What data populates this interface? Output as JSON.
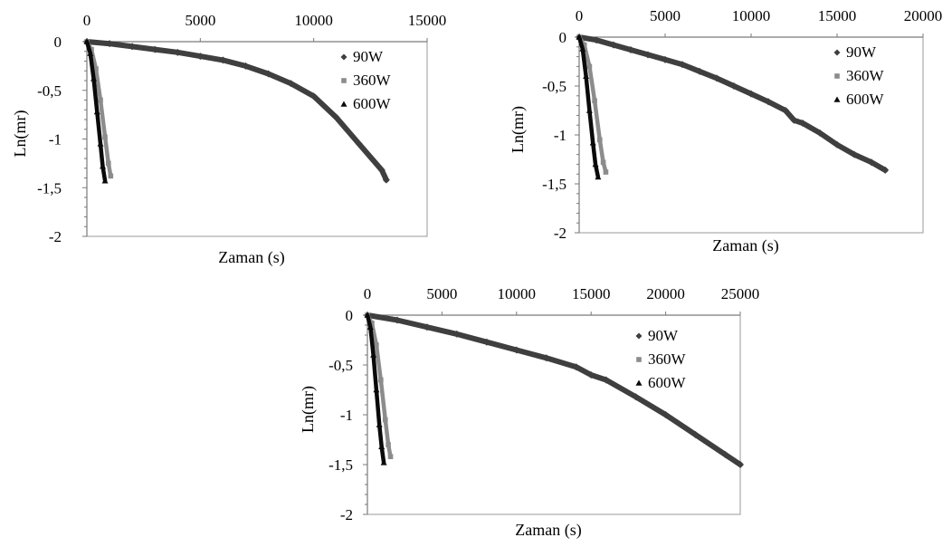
{
  "chart_data": [
    {
      "type": "scatter",
      "xlabel": "Zaman (s)",
      "ylabel": "Ln(mr)",
      "x_ticks": [
        "0",
        "5000",
        "10000",
        "15000"
      ],
      "y_ticks": [
        "0",
        "-0,5",
        "-1",
        "-1,5",
        "-2"
      ],
      "xlim": [
        0,
        15000
      ],
      "ylim": [
        -2,
        0
      ],
      "x_axis_position": "top",
      "grid": false,
      "legend_position": "top-right",
      "series": [
        {
          "name": "90W",
          "marker": "diamond",
          "color": "#3f3f3f",
          "points": [
            [
              0,
              0
            ],
            [
              1000,
              -0.02
            ],
            [
              2000,
              -0.05
            ],
            [
              3000,
              -0.08
            ],
            [
              4000,
              -0.11
            ],
            [
              5000,
              -0.15
            ],
            [
              6000,
              -0.19
            ],
            [
              7000,
              -0.25
            ],
            [
              8000,
              -0.33
            ],
            [
              9000,
              -0.43
            ],
            [
              10000,
              -0.56
            ],
            [
              11000,
              -0.78
            ],
            [
              12000,
              -1.05
            ],
            [
              13000,
              -1.32
            ],
            [
              13200,
              -1.42
            ]
          ]
        },
        {
          "name": "360W",
          "marker": "square",
          "color": "#8c8c8c",
          "points": [
            [
              0,
              0
            ],
            [
              200,
              -0.08
            ],
            [
              400,
              -0.28
            ],
            [
              600,
              -0.6
            ],
            [
              800,
              -0.98
            ],
            [
              950,
              -1.25
            ],
            [
              1050,
              -1.38
            ]
          ]
        },
        {
          "name": "600W",
          "marker": "triangle",
          "color": "#0a0a0a",
          "points": [
            [
              0,
              0
            ],
            [
              150,
              -0.12
            ],
            [
              300,
              -0.38
            ],
            [
              450,
              -0.72
            ],
            [
              600,
              -1.05
            ],
            [
              700,
              -1.28
            ],
            [
              800,
              -1.43
            ]
          ]
        }
      ]
    },
    {
      "type": "scatter",
      "xlabel": "Zaman (s)",
      "ylabel": "Ln(mr)",
      "x_ticks": [
        "0",
        "5000",
        "10000",
        "15000",
        "20000"
      ],
      "y_ticks": [
        "0",
        "-0,5",
        "-1",
        "-1,5",
        "-2"
      ],
      "xlim": [
        0,
        20000
      ],
      "ylim": [
        -2,
        0
      ],
      "x_axis_position": "top",
      "grid": false,
      "legend_position": "top-right",
      "series": [
        {
          "name": "90W",
          "marker": "diamond",
          "color": "#3f3f3f",
          "points": [
            [
              0,
              0
            ],
            [
              1000,
              -0.03
            ],
            [
              2000,
              -0.08
            ],
            [
              3000,
              -0.13
            ],
            [
              4000,
              -0.18
            ],
            [
              5000,
              -0.23
            ],
            [
              6000,
              -0.28
            ],
            [
              7000,
              -0.35
            ],
            [
              8000,
              -0.42
            ],
            [
              9000,
              -0.5
            ],
            [
              10000,
              -0.58
            ],
            [
              11000,
              -0.66
            ],
            [
              12000,
              -0.75
            ],
            [
              12500,
              -0.85
            ],
            [
              13000,
              -0.88
            ],
            [
              14000,
              -0.98
            ],
            [
              15000,
              -1.1
            ],
            [
              16000,
              -1.2
            ],
            [
              17000,
              -1.28
            ],
            [
              17800,
              -1.36
            ]
          ]
        },
        {
          "name": "360W",
          "marker": "square",
          "color": "#8c8c8c",
          "points": [
            [
              0,
              0
            ],
            [
              300,
              -0.08
            ],
            [
              600,
              -0.3
            ],
            [
              900,
              -0.65
            ],
            [
              1200,
              -1.05
            ],
            [
              1400,
              -1.28
            ],
            [
              1550,
              -1.38
            ]
          ]
        },
        {
          "name": "600W",
          "marker": "triangle",
          "color": "#0a0a0a",
          "points": [
            [
              0,
              0
            ],
            [
              200,
              -0.12
            ],
            [
              400,
              -0.4
            ],
            [
              600,
              -0.75
            ],
            [
              800,
              -1.08
            ],
            [
              950,
              -1.3
            ],
            [
              1100,
              -1.43
            ]
          ]
        }
      ]
    },
    {
      "type": "scatter",
      "xlabel": "Zaman (s)",
      "ylabel": "Ln(mr)",
      "x_ticks": [
        "0",
        "5000",
        "10000",
        "15000",
        "20000",
        "25000"
      ],
      "y_ticks": [
        "0",
        "-0,5",
        "-1",
        "-1,5",
        "-2"
      ],
      "xlim": [
        0,
        25000
      ],
      "ylim": [
        -2,
        0
      ],
      "x_axis_position": "top",
      "grid": false,
      "legend_position": "top-right",
      "series": [
        {
          "name": "90W",
          "marker": "diamond",
          "color": "#3f3f3f",
          "points": [
            [
              0,
              0
            ],
            [
              2000,
              -0.05
            ],
            [
              4000,
              -0.12
            ],
            [
              6000,
              -0.19
            ],
            [
              8000,
              -0.27
            ],
            [
              10000,
              -0.35
            ],
            [
              12000,
              -0.43
            ],
            [
              14000,
              -0.52
            ],
            [
              15000,
              -0.6
            ],
            [
              16000,
              -0.65
            ],
            [
              18000,
              -0.82
            ],
            [
              20000,
              -1.0
            ],
            [
              22000,
              -1.2
            ],
            [
              24000,
              -1.4
            ],
            [
              25000,
              -1.5
            ]
          ]
        },
        {
          "name": "360W",
          "marker": "square",
          "color": "#8c8c8c",
          "points": [
            [
              0,
              0
            ],
            [
              300,
              -0.08
            ],
            [
              600,
              -0.3
            ],
            [
              900,
              -0.65
            ],
            [
              1200,
              -1.05
            ],
            [
              1400,
              -1.3
            ],
            [
              1550,
              -1.42
            ]
          ]
        },
        {
          "name": "600W",
          "marker": "triangle",
          "color": "#0a0a0a",
          "points": [
            [
              0,
              0
            ],
            [
              200,
              -0.12
            ],
            [
              400,
              -0.4
            ],
            [
              600,
              -0.75
            ],
            [
              800,
              -1.1
            ],
            [
              950,
              -1.32
            ],
            [
              1100,
              -1.48
            ]
          ]
        }
      ]
    }
  ]
}
